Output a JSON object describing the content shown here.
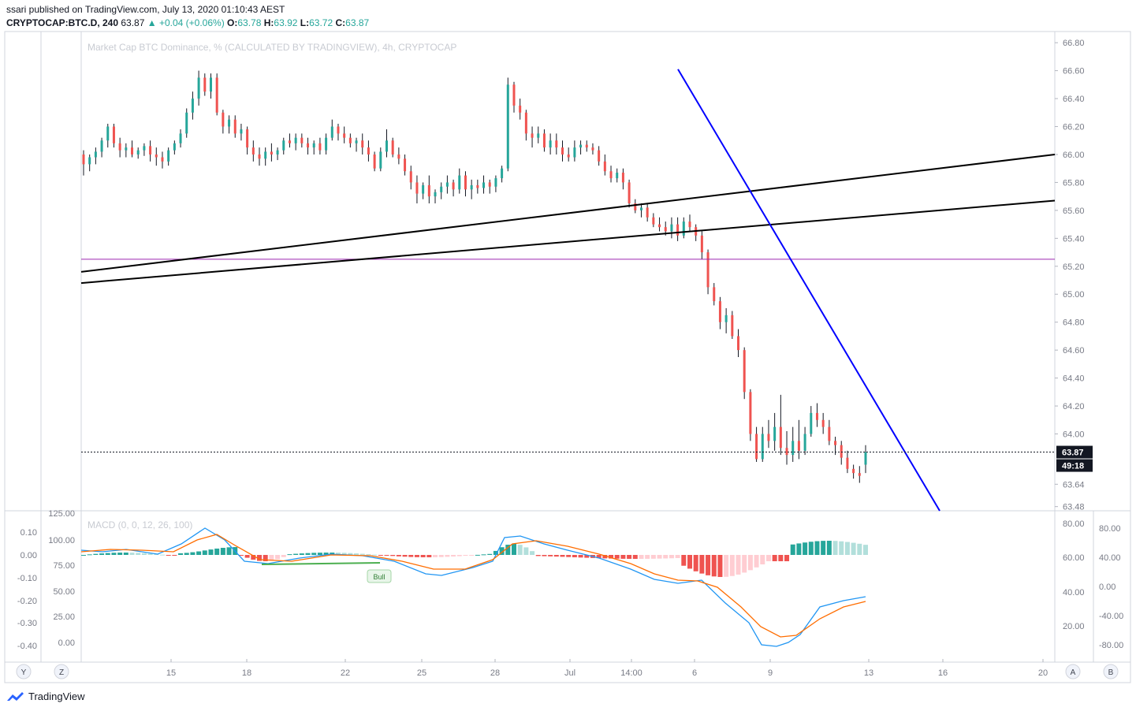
{
  "header": {
    "published": "ssari published on TradingView.com, July 13, 2020 01:10:43 AEST",
    "symbol": "CRYPTOCAP:BTC.D, 240",
    "last": "63.87",
    "change": "▲ +0.04 (+0.06%)",
    "o_label": "O:",
    "o": "63.78",
    "h_label": "H:",
    "h": "63.92",
    "l_label": "L:",
    "l": "63.72",
    "c_label": "C:",
    "c": "63.87"
  },
  "footer": {
    "brand": "TradingView"
  },
  "colors": {
    "up": "#26a69a",
    "down": "#ef5350",
    "macd_line": "#2196f3",
    "signal_line": "#ff6d00",
    "trend_blue": "#0000ff",
    "horizontal_purple": "#9c27b0",
    "bull_line": "#4caf50"
  },
  "chart_data": [
    {
      "type": "candlestick",
      "title": "Market Cap BTC Dominance, % (CALCULATED BY TRADINGVIEW), 4h, CRYPTOCAP",
      "y_ticks": [
        "66.80",
        "66.60",
        "66.40",
        "66.20",
        "66.00",
        "65.80",
        "65.60",
        "65.40",
        "65.20",
        "65.00",
        "64.80",
        "64.60",
        "64.40",
        "64.20",
        "64.00",
        "63.64",
        "63.48"
      ],
      "ylim": [
        63.45,
        66.88
      ],
      "x_ticks": [
        "15",
        "18",
        "22",
        "25",
        "28",
        "Jul",
        "14:00",
        "6",
        "9",
        "13",
        "16",
        "20"
      ],
      "last_price_label": "63.87",
      "countdown_label": "49:18",
      "last_price": 63.87,
      "horizontal_level": 65.25,
      "trendlines_description": "two black ascending lines and one blue descending line",
      "ohlc_approx": [
        [
          66.0,
          66.03,
          65.85,
          65.93
        ],
        [
          65.93,
          66.0,
          65.88,
          65.98
        ],
        [
          65.98,
          66.05,
          65.93,
          66.02
        ],
        [
          66.02,
          66.12,
          65.98,
          66.1
        ],
        [
          66.1,
          66.22,
          66.05,
          66.2
        ],
        [
          66.2,
          66.22,
          66.05,
          66.08
        ],
        [
          66.08,
          66.12,
          65.98,
          66.03
        ],
        [
          66.03,
          66.08,
          65.98,
          66.05
        ],
        [
          66.05,
          66.1,
          65.98,
          66.0
        ],
        [
          66.0,
          66.05,
          65.97,
          66.03
        ],
        [
          66.03,
          66.08,
          65.99,
          66.06
        ],
        [
          66.06,
          66.1,
          65.95,
          66.0
        ],
        [
          66.0,
          66.05,
          65.92,
          65.98
        ],
        [
          65.98,
          66.02,
          65.9,
          65.95
        ],
        [
          65.95,
          66.05,
          65.92,
          66.03
        ],
        [
          66.03,
          66.1,
          66.0,
          66.08
        ],
        [
          66.08,
          66.18,
          66.05,
          66.15
        ],
        [
          66.15,
          66.33,
          66.12,
          66.3
        ],
        [
          66.3,
          66.45,
          66.25,
          66.4
        ],
        [
          66.4,
          66.6,
          66.35,
          66.55
        ],
        [
          66.55,
          66.58,
          66.42,
          66.45
        ],
        [
          66.45,
          66.58,
          66.4,
          66.55
        ],
        [
          66.55,
          66.58,
          66.28,
          66.3
        ],
        [
          66.3,
          66.32,
          66.15,
          66.2
        ],
        [
          66.2,
          66.28,
          66.15,
          66.25
        ],
        [
          66.25,
          66.28,
          66.12,
          66.15
        ],
        [
          66.15,
          66.22,
          66.1,
          66.18
        ],
        [
          66.18,
          66.2,
          66.0,
          66.05
        ],
        [
          66.05,
          66.1,
          65.95,
          66.0
        ],
        [
          66.0,
          66.05,
          65.92,
          65.97
        ],
        [
          65.97,
          66.05,
          65.92,
          66.02
        ],
        [
          66.02,
          66.08,
          65.95,
          66.0
        ],
        [
          66.0,
          66.05,
          65.96,
          66.03
        ],
        [
          66.03,
          66.12,
          66.0,
          66.1
        ],
        [
          66.1,
          66.15,
          66.05,
          66.08
        ],
        [
          66.08,
          66.15,
          66.03,
          66.12
        ],
        [
          66.12,
          66.15,
          66.05,
          66.08
        ],
        [
          66.08,
          66.12,
          66.0,
          66.05
        ],
        [
          66.05,
          66.1,
          66.0,
          66.08
        ],
        [
          66.08,
          66.12,
          66.0,
          66.03
        ],
        [
          66.03,
          66.15,
          66.0,
          66.12
        ],
        [
          66.12,
          66.25,
          66.1,
          66.2
        ],
        [
          66.2,
          66.22,
          66.1,
          66.15
        ],
        [
          66.15,
          66.2,
          66.08,
          66.12
        ],
        [
          66.12,
          66.15,
          66.05,
          66.08
        ],
        [
          66.08,
          66.12,
          66.02,
          66.1
        ],
        [
          66.1,
          66.15,
          66.0,
          66.05
        ],
        [
          66.05,
          66.1,
          65.95,
          66.0
        ],
        [
          66.0,
          66.02,
          65.88,
          65.9
        ],
        [
          65.9,
          66.05,
          65.88,
          66.02
        ],
        [
          66.02,
          66.18,
          65.98,
          66.1
        ],
        [
          66.1,
          66.12,
          65.98,
          66.0
        ],
        [
          66.0,
          66.05,
          65.93,
          65.97
        ],
        [
          65.97,
          66.0,
          65.85,
          65.88
        ],
        [
          65.88,
          65.92,
          65.75,
          65.8
        ],
        [
          65.8,
          65.85,
          65.65,
          65.72
        ],
        [
          65.72,
          65.8,
          65.68,
          65.78
        ],
        [
          65.78,
          65.85,
          65.65,
          65.7
        ],
        [
          65.7,
          65.75,
          65.65,
          65.73
        ],
        [
          65.73,
          65.8,
          65.68,
          65.77
        ],
        [
          65.77,
          65.85,
          65.72,
          65.8
        ],
        [
          65.8,
          65.82,
          65.7,
          65.75
        ],
        [
          65.75,
          65.9,
          65.72,
          65.85
        ],
        [
          65.85,
          65.88,
          65.7,
          65.75
        ],
        [
          65.75,
          65.82,
          65.68,
          65.78
        ],
        [
          65.78,
          65.82,
          65.72,
          65.76
        ],
        [
          65.76,
          65.85,
          65.72,
          65.8
        ],
        [
          65.8,
          65.82,
          65.72,
          65.77
        ],
        [
          65.77,
          65.85,
          65.73,
          65.83
        ],
        [
          65.83,
          65.92,
          65.8,
          65.9
        ],
        [
          65.9,
          66.55,
          65.88,
          66.5
        ],
        [
          66.5,
          66.52,
          66.3,
          66.35
        ],
        [
          66.35,
          66.4,
          66.25,
          66.3
        ],
        [
          66.3,
          66.32,
          66.1,
          66.15
        ],
        [
          66.15,
          66.2,
          66.05,
          66.12
        ],
        [
          66.12,
          66.2,
          66.08,
          66.15
        ],
        [
          66.15,
          66.18,
          66.02,
          66.05
        ],
        [
          66.05,
          66.15,
          66.0,
          66.1
        ],
        [
          66.1,
          66.15,
          66.0,
          66.05
        ],
        [
          66.05,
          66.1,
          65.95,
          66.0
        ],
        [
          66.0,
          66.05,
          65.95,
          65.98
        ],
        [
          65.98,
          66.1,
          65.95,
          66.05
        ],
        [
          66.05,
          66.1,
          66.0,
          66.07
        ],
        [
          66.07,
          66.1,
          66.02,
          66.05
        ],
        [
          66.05,
          66.08,
          66.0,
          66.03
        ],
        [
          66.03,
          66.06,
          65.92,
          65.95
        ],
        [
          65.95,
          66.0,
          65.85,
          65.88
        ],
        [
          65.88,
          65.92,
          65.8,
          65.83
        ],
        [
          65.83,
          65.9,
          65.8,
          65.87
        ],
        [
          65.87,
          65.9,
          65.75,
          65.8
        ],
        [
          65.8,
          65.82,
          65.62,
          65.65
        ],
        [
          65.65,
          65.68,
          65.58,
          65.6
        ],
        [
          65.6,
          65.65,
          65.55,
          65.62
        ],
        [
          65.62,
          65.65,
          65.52,
          65.55
        ],
        [
          65.55,
          65.58,
          65.48,
          65.5
        ],
        [
          65.5,
          65.55,
          65.45,
          65.48
        ],
        [
          65.48,
          65.52,
          65.42,
          65.45
        ],
        [
          65.45,
          65.55,
          65.4,
          65.5
        ],
        [
          65.5,
          65.55,
          65.38,
          65.42
        ],
        [
          65.42,
          65.55,
          65.4,
          65.52
        ],
        [
          65.52,
          65.57,
          65.45,
          65.48
        ],
        [
          65.48,
          65.5,
          65.38,
          65.42
        ],
        [
          65.42,
          65.45,
          65.25,
          65.3
        ],
        [
          65.3,
          65.32,
          65.0,
          65.05
        ],
        [
          65.05,
          65.08,
          64.92,
          64.95
        ],
        [
          64.95,
          64.98,
          64.75,
          64.8
        ],
        [
          64.8,
          64.9,
          64.72,
          64.85
        ],
        [
          64.85,
          64.88,
          64.68,
          64.7
        ],
        [
          64.7,
          64.75,
          64.55,
          64.6
        ],
        [
          64.6,
          64.62,
          64.25,
          64.3
        ],
        [
          64.3,
          64.32,
          63.95,
          64.0
        ],
        [
          64.0,
          64.05,
          63.8,
          63.82
        ],
        [
          63.82,
          64.05,
          63.8,
          64.0
        ],
        [
          64.0,
          64.1,
          63.9,
          63.95
        ],
        [
          63.95,
          64.15,
          63.88,
          64.05
        ],
        [
          64.05,
          64.28,
          63.85,
          63.9
        ],
        [
          63.9,
          64.02,
          63.78,
          63.85
        ],
        [
          63.85,
          64.05,
          63.8,
          63.95
        ],
        [
          63.95,
          64.1,
          63.82,
          63.88
        ],
        [
          63.88,
          64.05,
          63.85,
          64.0
        ],
        [
          64.0,
          64.2,
          63.98,
          64.15
        ],
        [
          64.15,
          64.22,
          64.05,
          64.1
        ],
        [
          64.1,
          64.15,
          64.0,
          64.05
        ],
        [
          64.05,
          64.1,
          63.92,
          63.95
        ],
        [
          63.95,
          63.98,
          63.85,
          63.92
        ],
        [
          63.92,
          63.95,
          63.78,
          63.83
        ],
        [
          63.83,
          63.88,
          63.72,
          63.75
        ],
        [
          63.75,
          63.78,
          63.68,
          63.72
        ],
        [
          63.72,
          63.77,
          63.65,
          63.7
        ],
        [
          63.78,
          63.92,
          63.72,
          63.87
        ]
      ]
    },
    {
      "type": "line",
      "title": "MACD (0, 0, 12, 26, 100)",
      "series": [
        {
          "name": "MACD",
          "description": "blue line"
        },
        {
          "name": "Signal",
          "description": "orange line"
        }
      ],
      "left_axis_outer": [
        "0.10",
        "0.00",
        "-0.10",
        "-0.20",
        "-0.30",
        "-0.40"
      ],
      "left_axis_inner": [
        "125.00",
        "100.00",
        "75.00",
        "50.00",
        "25.00",
        "0.00"
      ],
      "right_axis_inner": [
        "80.00",
        "60.00",
        "40.00",
        "20.00"
      ],
      "right_axis_outer": [
        "80.00",
        "40.00",
        "0.00",
        "-40.00",
        "-80.00"
      ],
      "annotation": "Bull"
    }
  ],
  "axis_buttons": {
    "left1": "Y",
    "left2": "Z",
    "right1": "A",
    "right2": "B"
  }
}
